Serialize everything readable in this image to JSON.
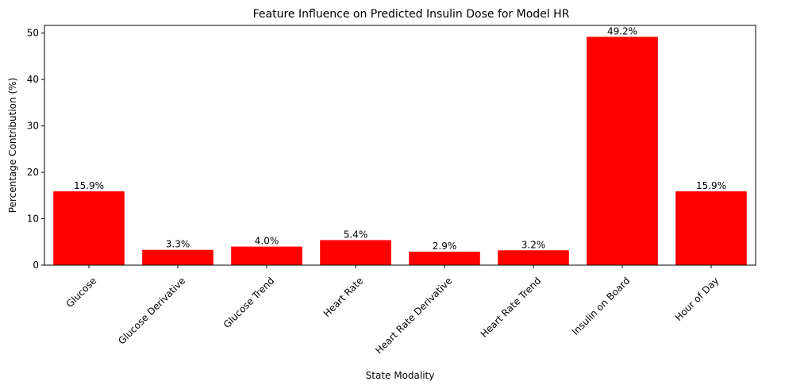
{
  "chart_data": {
    "type": "bar",
    "title": "Feature Influence on Predicted Insulin Dose for Model HR",
    "xlabel": "State Modality",
    "ylabel": "Percentage Contribution (%)",
    "categories": [
      "Glucose",
      "Glucose Derivative",
      "Glucose Trend",
      "Heart Rate",
      "Heart Rate Derivative",
      "Heart Rate Trend",
      "Insulin on Board",
      "Hour of Day"
    ],
    "values": [
      15.9,
      3.3,
      4.0,
      5.4,
      2.9,
      3.2,
      49.2,
      15.9
    ],
    "data_labels": [
      "15.9%",
      "3.3%",
      "4.0%",
      "5.4%",
      "2.9%",
      "3.2%",
      "49.2%",
      "15.9%"
    ],
    "ylim": [
      0,
      51.66
    ],
    "yticks": [
      0,
      10,
      20,
      30,
      40,
      50
    ],
    "bar_color": "#ff0000",
    "grid": false,
    "legend": "none"
  }
}
